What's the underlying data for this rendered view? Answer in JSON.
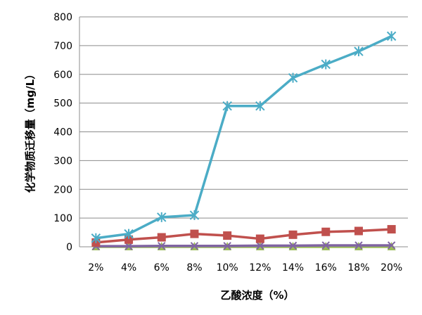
{
  "chart_data": {
    "type": "line",
    "xlabel": "乙酸浓度（%）",
    "ylabel": "化学物质迁移量（mg/L）",
    "categories": [
      "2%",
      "4%",
      "6%",
      "8%",
      "10%",
      "12%",
      "14%",
      "16%",
      "18%",
      "20%"
    ],
    "ylim": [
      0,
      800
    ],
    "yticks": [
      0,
      100,
      200,
      300,
      400,
      500,
      600,
      700,
      800
    ],
    "grid": true,
    "legend": "none",
    "series": [
      {
        "color": "#4bacc6",
        "marker": "star",
        "values": [
          30,
          45,
          103,
          110,
          490,
          490,
          588,
          635,
          680,
          733
        ]
      },
      {
        "color": "#c0504d",
        "marker": "square",
        "values": [
          15,
          25,
          33,
          45,
          39,
          28,
          42,
          52,
          55,
          61
        ]
      },
      {
        "color": "#8064a2",
        "marker": "x",
        "values": [
          2,
          2,
          3,
          3,
          3,
          4,
          4,
          5,
          5,
          5
        ]
      },
      {
        "color": "#9bbb59",
        "marker": "triangle",
        "values": [
          0,
          0,
          0,
          0,
          0,
          0,
          0,
          0,
          0,
          0
        ]
      }
    ]
  }
}
